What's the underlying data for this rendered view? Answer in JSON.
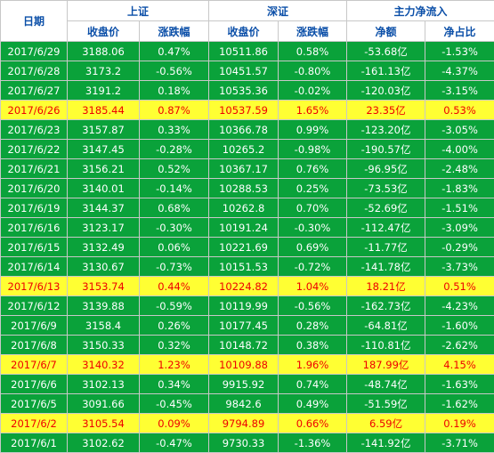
{
  "header": {
    "date": "日期",
    "sh": "上证",
    "sz": "深证",
    "flow": "主力净流入",
    "close": "收盘价",
    "change": "涨跌幅",
    "net": "净额",
    "ratio": "净占比"
  },
  "rows": [
    {
      "date": "2017/6/29",
      "sh_close": "3188.06",
      "sh_chg": "0.47%",
      "sz_close": "10511.86",
      "sz_chg": "0.58%",
      "net": "-53.68亿",
      "ratio": "-1.53%",
      "highlight": false
    },
    {
      "date": "2017/6/28",
      "sh_close": "3173.2",
      "sh_chg": "-0.56%",
      "sz_close": "10451.57",
      "sz_chg": "-0.80%",
      "net": "-161.13亿",
      "ratio": "-4.37%",
      "highlight": false
    },
    {
      "date": "2017/6/27",
      "sh_close": "3191.2",
      "sh_chg": "0.18%",
      "sz_close": "10535.36",
      "sz_chg": "-0.02%",
      "net": "-120.03亿",
      "ratio": "-3.15%",
      "highlight": false
    },
    {
      "date": "2017/6/26",
      "sh_close": "3185.44",
      "sh_chg": "0.87%",
      "sz_close": "10537.59",
      "sz_chg": "1.65%",
      "net": "23.35亿",
      "ratio": "0.53%",
      "highlight": true
    },
    {
      "date": "2017/6/23",
      "sh_close": "3157.87",
      "sh_chg": "0.33%",
      "sz_close": "10366.78",
      "sz_chg": "0.99%",
      "net": "-123.20亿",
      "ratio": "-3.05%",
      "highlight": false
    },
    {
      "date": "2017/6/22",
      "sh_close": "3147.45",
      "sh_chg": "-0.28%",
      "sz_close": "10265.2",
      "sz_chg": "-0.98%",
      "net": "-190.57亿",
      "ratio": "-4.00%",
      "highlight": false
    },
    {
      "date": "2017/6/21",
      "sh_close": "3156.21",
      "sh_chg": "0.52%",
      "sz_close": "10367.17",
      "sz_chg": "0.76%",
      "net": "-96.95亿",
      "ratio": "-2.48%",
      "highlight": false
    },
    {
      "date": "2017/6/20",
      "sh_close": "3140.01",
      "sh_chg": "-0.14%",
      "sz_close": "10288.53",
      "sz_chg": "0.25%",
      "net": "-73.53亿",
      "ratio": "-1.83%",
      "highlight": false
    },
    {
      "date": "2017/6/19",
      "sh_close": "3144.37",
      "sh_chg": "0.68%",
      "sz_close": "10262.8",
      "sz_chg": "0.70%",
      "net": "-52.69亿",
      "ratio": "-1.51%",
      "highlight": false
    },
    {
      "date": "2017/6/16",
      "sh_close": "3123.17",
      "sh_chg": "-0.30%",
      "sz_close": "10191.24",
      "sz_chg": "-0.30%",
      "net": "-112.47亿",
      "ratio": "-3.09%",
      "highlight": false
    },
    {
      "date": "2017/6/15",
      "sh_close": "3132.49",
      "sh_chg": "0.06%",
      "sz_close": "10221.69",
      "sz_chg": "0.69%",
      "net": "-11.77亿",
      "ratio": "-0.29%",
      "highlight": false
    },
    {
      "date": "2017/6/14",
      "sh_close": "3130.67",
      "sh_chg": "-0.73%",
      "sz_close": "10151.53",
      "sz_chg": "-0.72%",
      "net": "-141.78亿",
      "ratio": "-3.73%",
      "highlight": false
    },
    {
      "date": "2017/6/13",
      "sh_close": "3153.74",
      "sh_chg": "0.44%",
      "sz_close": "10224.82",
      "sz_chg": "1.04%",
      "net": "18.21亿",
      "ratio": "0.51%",
      "highlight": true
    },
    {
      "date": "2017/6/12",
      "sh_close": "3139.88",
      "sh_chg": "-0.59%",
      "sz_close": "10119.99",
      "sz_chg": "-0.56%",
      "net": "-162.73亿",
      "ratio": "-4.23%",
      "highlight": false
    },
    {
      "date": "2017/6/9",
      "sh_close": "3158.4",
      "sh_chg": "0.26%",
      "sz_close": "10177.45",
      "sz_chg": "0.28%",
      "net": "-64.81亿",
      "ratio": "-1.60%",
      "highlight": false
    },
    {
      "date": "2017/6/8",
      "sh_close": "3150.33",
      "sh_chg": "0.32%",
      "sz_close": "10148.72",
      "sz_chg": "0.38%",
      "net": "-110.81亿",
      "ratio": "-2.62%",
      "highlight": false
    },
    {
      "date": "2017/6/7",
      "sh_close": "3140.32",
      "sh_chg": "1.23%",
      "sz_close": "10109.88",
      "sz_chg": "1.96%",
      "net": "187.99亿",
      "ratio": "4.15%",
      "highlight": true
    },
    {
      "date": "2017/6/6",
      "sh_close": "3102.13",
      "sh_chg": "0.34%",
      "sz_close": "9915.92",
      "sz_chg": "0.74%",
      "net": "-48.74亿",
      "ratio": "-1.63%",
      "highlight": false
    },
    {
      "date": "2017/6/5",
      "sh_close": "3091.66",
      "sh_chg": "-0.45%",
      "sz_close": "9842.6",
      "sz_chg": "0.49%",
      "net": "-51.59亿",
      "ratio": "-1.62%",
      "highlight": false
    },
    {
      "date": "2017/6/2",
      "sh_close": "3105.54",
      "sh_chg": "0.09%",
      "sz_close": "9794.89",
      "sz_chg": "0.66%",
      "net": "6.59亿",
      "ratio": "0.19%",
      "highlight": true
    },
    {
      "date": "2017/6/1",
      "sh_close": "3102.62",
      "sh_chg": "-0.47%",
      "sz_close": "9730.33",
      "sz_chg": "-1.36%",
      "net": "-141.92亿",
      "ratio": "-3.71%",
      "highlight": false
    }
  ],
  "colors": {
    "row_green": "#0aa23a",
    "row_yellow": "#ffff33",
    "highlight_text": "#ee0000",
    "header_text": "#0b4fa8"
  }
}
